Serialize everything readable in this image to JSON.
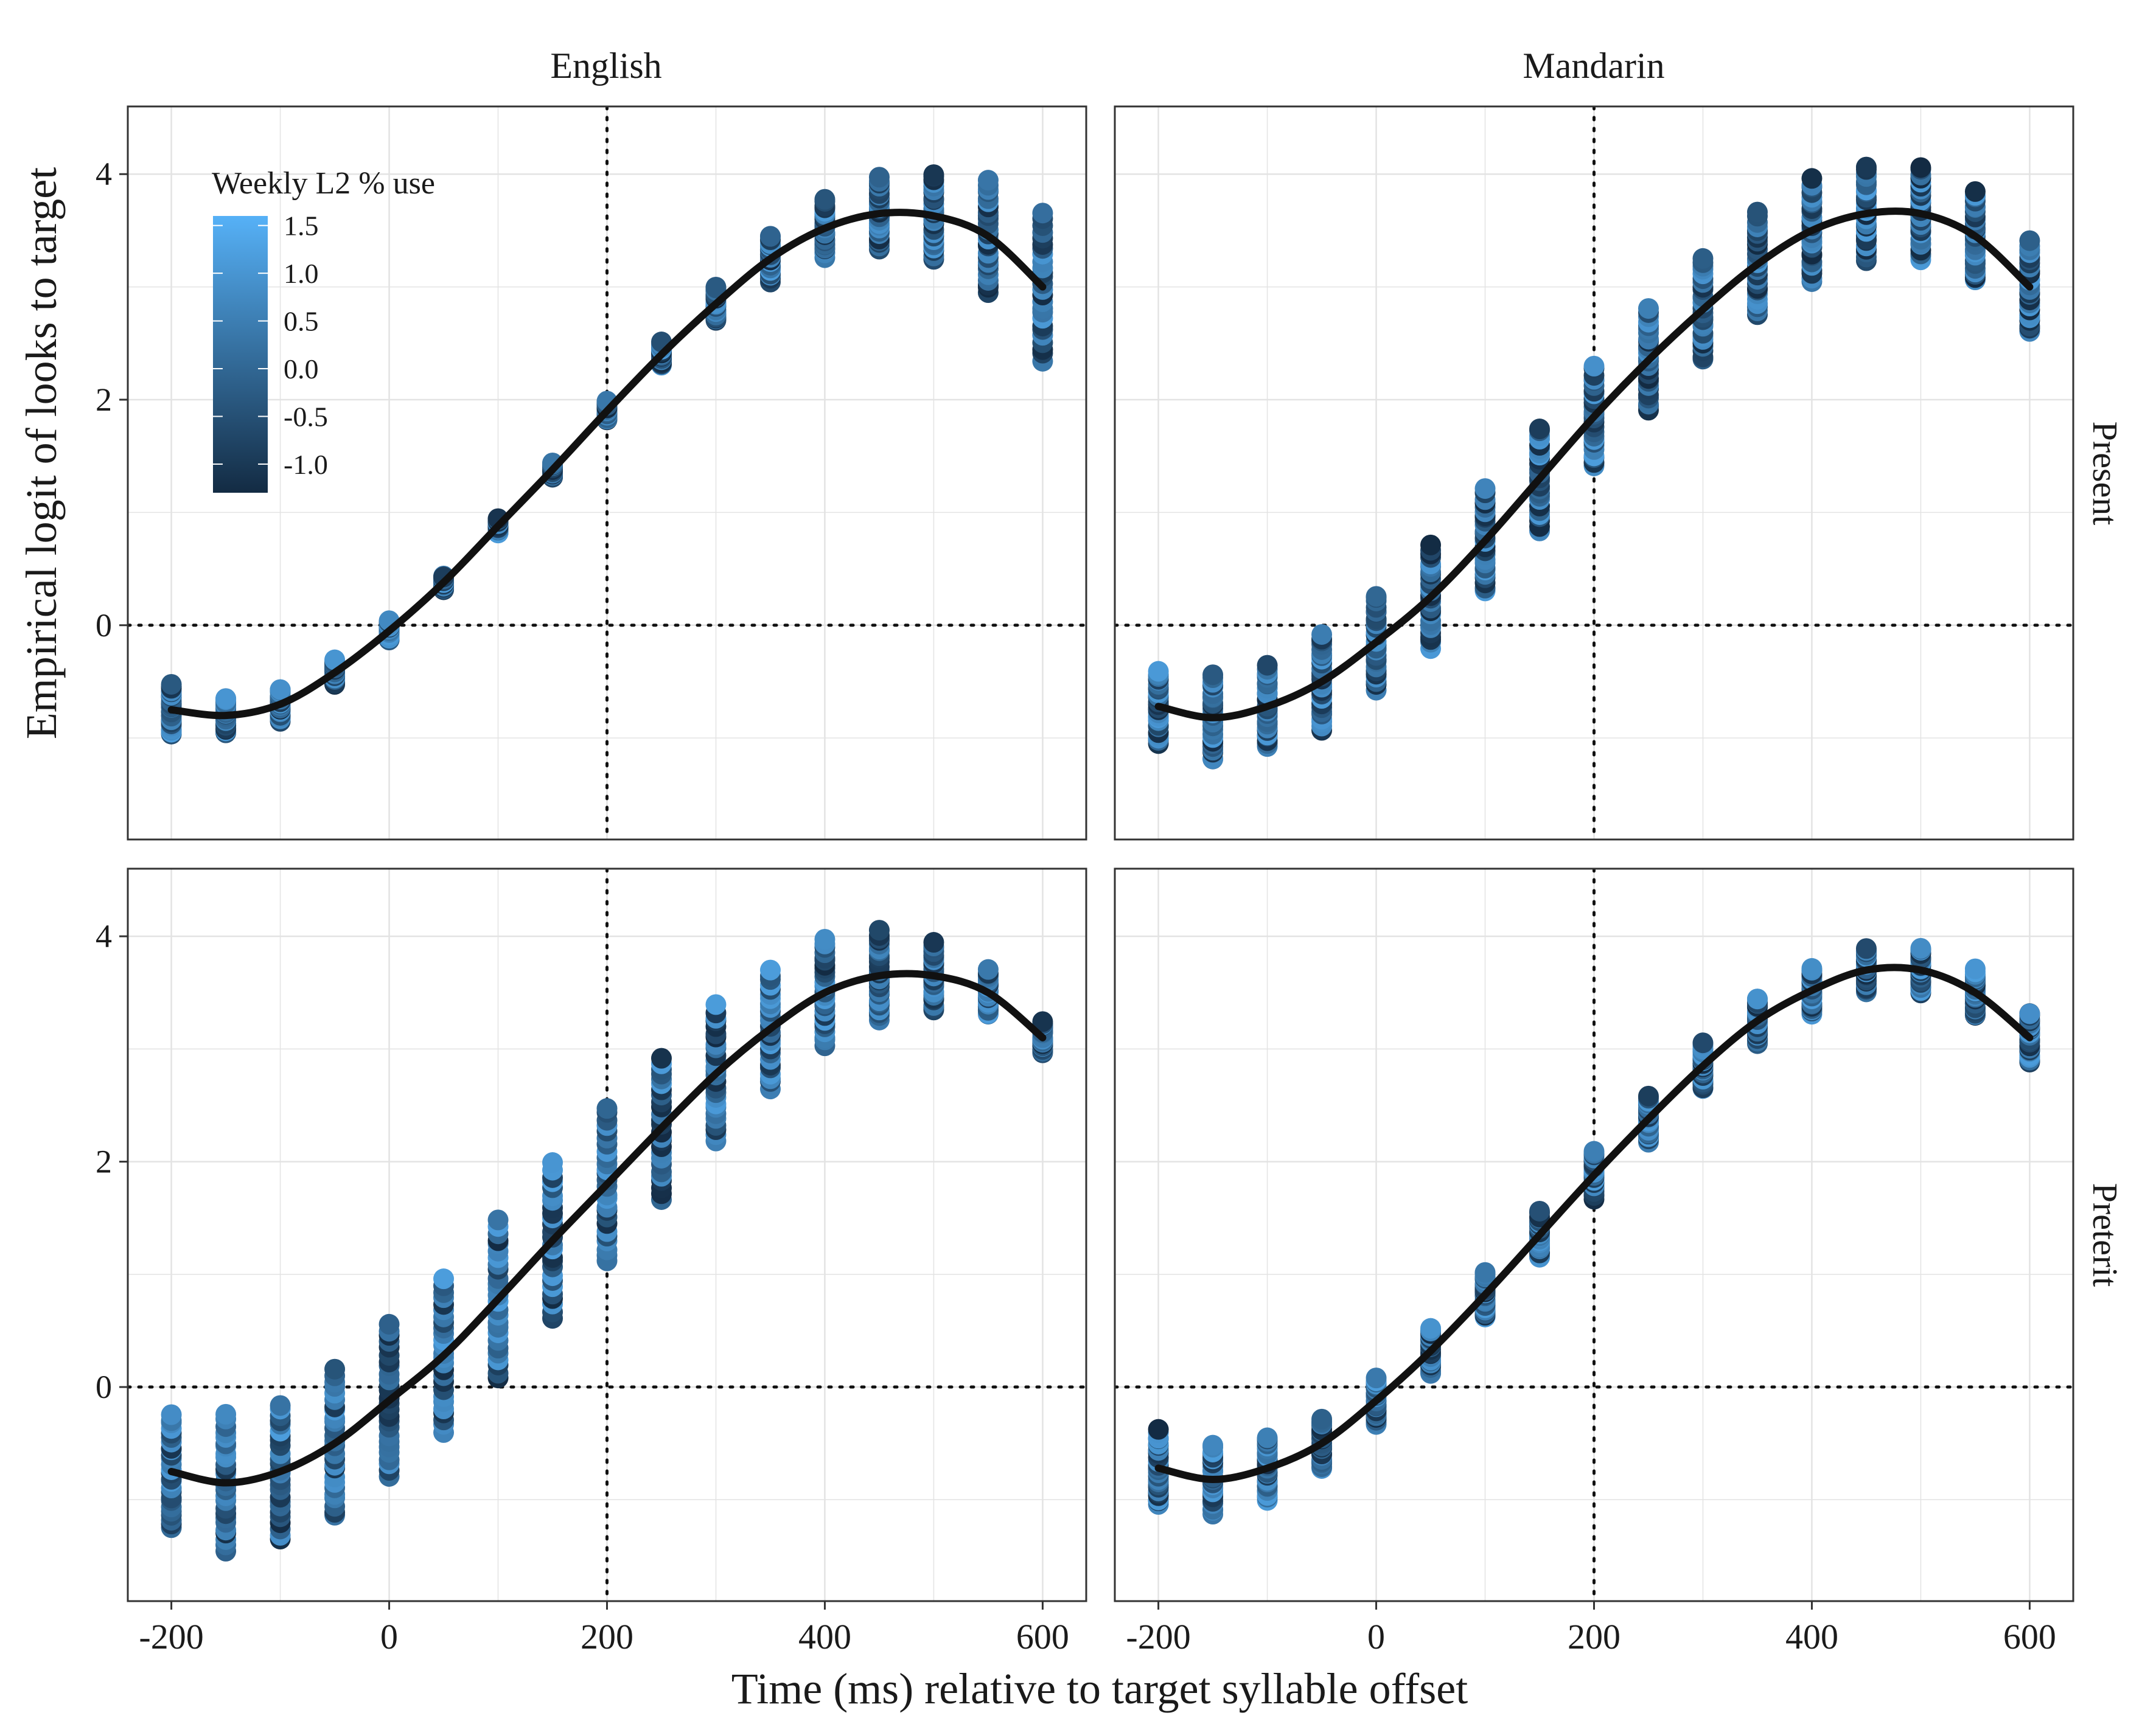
{
  "figure": {
    "xlabel": "Time (ms) relative to target syllable offset",
    "ylabel": "Empirical logit of looks to target",
    "col_labels": [
      "English",
      "Mandarin"
    ],
    "row_labels": [
      "Present",
      "Preterit"
    ]
  },
  "legend": {
    "title": "Weekly L2 % use",
    "labels": [
      "1.5",
      "1.0",
      "0.5",
      "0.0",
      "-0.5",
      "-1.0"
    ],
    "values": [
      1.5,
      1.0,
      0.5,
      0.0,
      -0.5,
      -1.0
    ],
    "range": [
      -1.3,
      1.6
    ],
    "color_low": "#132B43",
    "color_high": "#56B1F7",
    "placement": "inside top-left of English / Present panel"
  },
  "colors": {
    "line": "#111111",
    "grid": "#e3e3e3",
    "panel_border": "#333333",
    "point_low": "#132B43",
    "point_high": "#56B1F7"
  },
  "chart_data": {
    "type": "scatter",
    "facets": "grid: columns = language, rows = tense",
    "x_ticks": [
      -200,
      0,
      200,
      400,
      600
    ],
    "x_tick_labels": [
      "-200",
      "0",
      "200",
      "400",
      "600"
    ],
    "y_ticks": [
      0,
      2,
      4
    ],
    "y_tick_labels": [
      "0",
      "2",
      "4"
    ],
    "xlim": [
      -240,
      640
    ],
    "ylim": [
      -1.9,
      4.6
    ],
    "reference_lines": {
      "x": 200,
      "y": 0,
      "style": "dotted"
    },
    "grid": true,
    "x": [
      -200,
      -150,
      -100,
      -50,
      0,
      50,
      100,
      150,
      200,
      250,
      300,
      350,
      400,
      450,
      500,
      550,
      600
    ],
    "panels": [
      {
        "column": "English",
        "row": "Present",
        "fit": [
          -0.75,
          -0.8,
          -0.7,
          -0.42,
          -0.05,
          0.38,
          0.88,
          1.38,
          1.9,
          2.4,
          2.85,
          3.25,
          3.52,
          3.65,
          3.63,
          3.45,
          3.0
        ],
        "spread": [
          0.22,
          0.16,
          0.14,
          0.1,
          0.08,
          0.06,
          0.06,
          0.06,
          0.08,
          0.1,
          0.15,
          0.2,
          0.25,
          0.32,
          0.38,
          0.5,
          0.65
        ]
      },
      {
        "column": "Mandarin",
        "row": "Present",
        "fit": [
          -0.72,
          -0.82,
          -0.72,
          -0.5,
          -0.15,
          0.25,
          0.75,
          1.3,
          1.85,
          2.35,
          2.8,
          3.2,
          3.5,
          3.65,
          3.65,
          3.45,
          3.0
        ],
        "spread": [
          0.32,
          0.38,
          0.36,
          0.42,
          0.42,
          0.45,
          0.45,
          0.45,
          0.45,
          0.45,
          0.45,
          0.45,
          0.45,
          0.42,
          0.42,
          0.4,
          0.4
        ]
      },
      {
        "column": "English",
        "row": "Preterit",
        "fit": [
          -0.75,
          -0.85,
          -0.75,
          -0.5,
          -0.12,
          0.28,
          0.78,
          1.3,
          1.8,
          2.3,
          2.78,
          3.18,
          3.5,
          3.65,
          3.65,
          3.5,
          3.1
        ],
        "spread": [
          0.5,
          0.6,
          0.6,
          0.65,
          0.68,
          0.68,
          0.7,
          0.68,
          0.68,
          0.63,
          0.6,
          0.52,
          0.46,
          0.4,
          0.3,
          0.2,
          0.13
        ]
      },
      {
        "column": "Mandarin",
        "row": "Preterit",
        "fit": [
          -0.72,
          -0.82,
          -0.72,
          -0.5,
          -0.12,
          0.32,
          0.82,
          1.35,
          1.88,
          2.38,
          2.85,
          3.25,
          3.52,
          3.7,
          3.7,
          3.5,
          3.1
        ],
        "spread": [
          0.33,
          0.3,
          0.28,
          0.22,
          0.2,
          0.2,
          0.2,
          0.2,
          0.2,
          0.2,
          0.2,
          0.2,
          0.2,
          0.2,
          0.2,
          0.2,
          0.22
        ]
      }
    ]
  }
}
